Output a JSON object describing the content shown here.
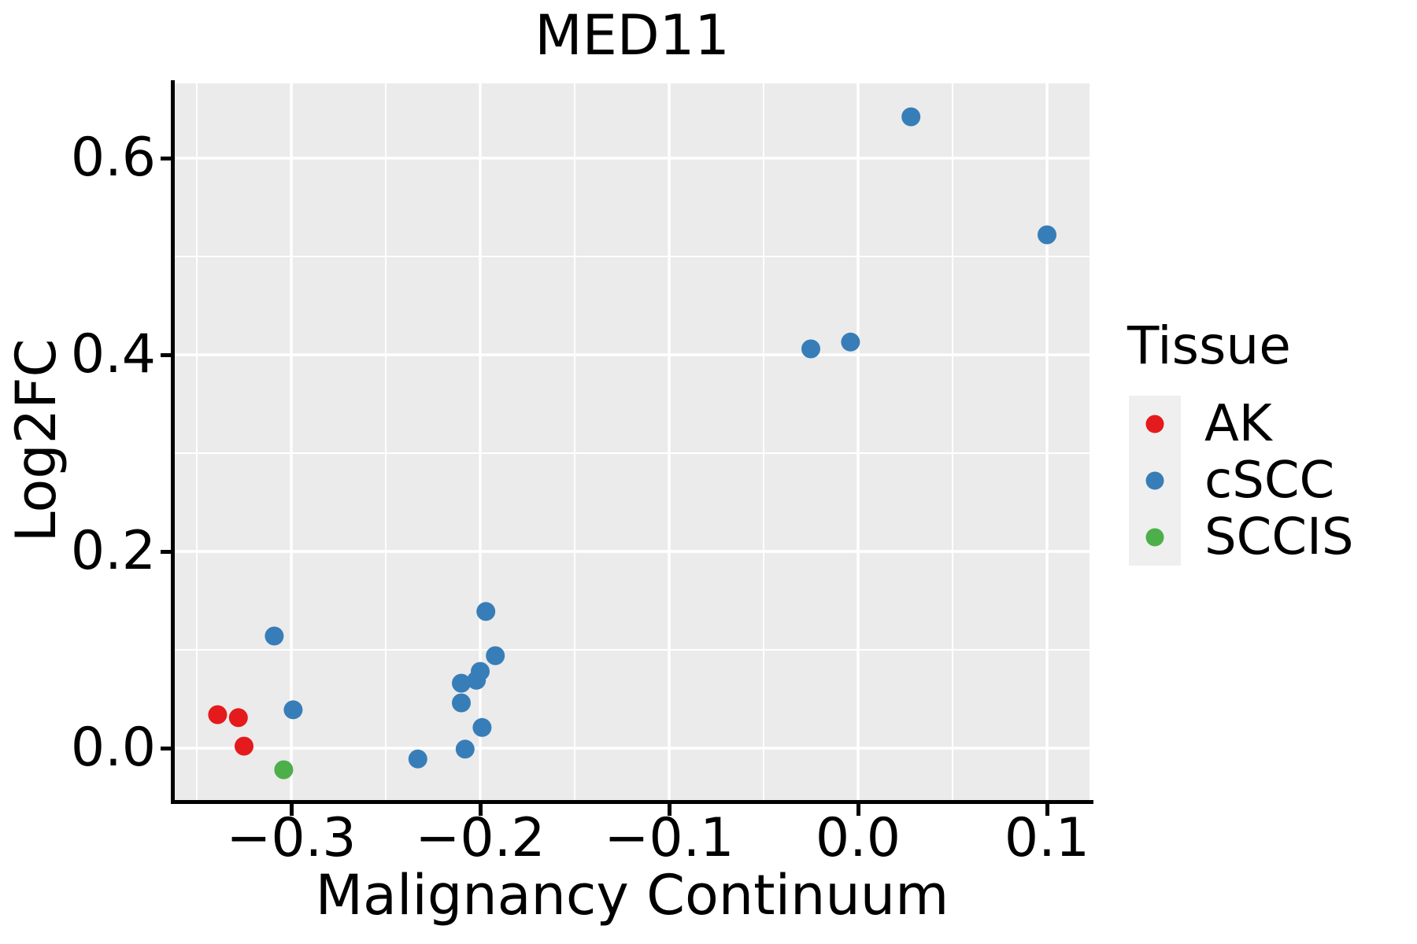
{
  "title": "MED11",
  "colors": {
    "ak": "#E41A1C",
    "cscc": "#377EB8",
    "sccis": "#4DAF4A",
    "panel_background": "#EBEBEB",
    "gridline": "#FFFFFF",
    "legend_key_background": "#EFEFEF",
    "axis_line": "#000000",
    "text": "#000000"
  },
  "legend": {
    "title": "Tissue",
    "entries": [
      {
        "label": "AK",
        "color": "#E41A1C"
      },
      {
        "label": "cSCC",
        "color": "#377EB8"
      },
      {
        "label": "SCCIS",
        "color": "#4DAF4A"
      }
    ]
  },
  "chart_data": {
    "type": "scatter",
    "title": "MED11",
    "xlabel": "Malignancy Continuum",
    "ylabel": "Log2FC",
    "xlim": [
      -0.362,
      0.122
    ],
    "ylim": [
      -0.053,
      0.676
    ],
    "x_ticks": [
      -0.3,
      -0.2,
      -0.1,
      0.0,
      0.1
    ],
    "x_tick_labels": [
      "−0.3",
      "−0.2",
      "−0.1",
      "0.0",
      "0.1"
    ],
    "y_ticks": [
      0.0,
      0.2,
      0.4,
      0.6
    ],
    "y_tick_labels": [
      "0.0",
      "0.2",
      "0.4",
      "0.6"
    ],
    "grid": true,
    "legend_position": "right",
    "series": [
      {
        "name": "AK",
        "color": "#E41A1C",
        "points": [
          [
            -0.339,
            0.034
          ],
          [
            -0.328,
            0.031
          ],
          [
            -0.325,
            0.002
          ]
        ]
      },
      {
        "name": "cSCC",
        "color": "#377EB8",
        "points": [
          [
            -0.309,
            0.114
          ],
          [
            -0.299,
            0.039
          ],
          [
            -0.233,
            -0.011
          ],
          [
            -0.208,
            -0.001
          ],
          [
            -0.199,
            0.021
          ],
          [
            -0.21,
            0.046
          ],
          [
            -0.21,
            0.066
          ],
          [
            -0.202,
            0.069
          ],
          [
            -0.2,
            0.078
          ],
          [
            -0.192,
            0.094
          ],
          [
            -0.197,
            0.139
          ],
          [
            -0.025,
            0.406
          ],
          [
            -0.004,
            0.413
          ],
          [
            0.028,
            0.642
          ],
          [
            0.1,
            0.522
          ]
        ]
      },
      {
        "name": "SCCIS",
        "color": "#4DAF4A",
        "points": [
          [
            -0.304,
            -0.022
          ]
        ]
      }
    ]
  }
}
